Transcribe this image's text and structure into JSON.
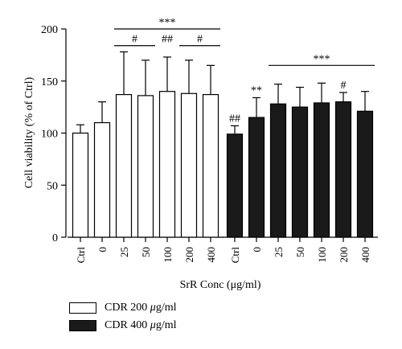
{
  "chart_data": {
    "type": "bar",
    "categories": [
      "Ctrl",
      "0",
      "25",
      "50",
      "100",
      "200",
      "400"
    ],
    "series": [
      {
        "name": "CDR 200 μg/ml",
        "fill": "#ffffff",
        "values": [
          100,
          110,
          137,
          136,
          140,
          138,
          137
        ],
        "errors": [
          8,
          20,
          41,
          34,
          33,
          32,
          28
        ],
        "annotations": [
          "",
          "",
          "",
          "",
          "",
          "",
          ""
        ]
      },
      {
        "name": "CDR 400 μg/ml",
        "fill": "#1a1a1a",
        "values": [
          99,
          115,
          128,
          125,
          129,
          130,
          121
        ],
        "errors": [
          8,
          19,
          19,
          19,
          19,
          9,
          19
        ],
        "annotations": [
          "##",
          "**",
          "",
          "",
          "",
          "#",
          ""
        ]
      }
    ],
    "ylabel": "Cell viability (% of Ctrl)",
    "xlabel": "SrR Conc (μg/ml)",
    "ylim": [
      0,
      200
    ],
    "yticks": [
      0,
      50,
      100,
      150,
      200
    ],
    "grid": false,
    "legend_position": "bottom-left",
    "significance": [
      {
        "series": 0,
        "from": 2,
        "to": 6,
        "label": "***",
        "y": 200
      },
      {
        "series": 0,
        "from": 2,
        "to": 3,
        "label": "#",
        "y": 184
      },
      {
        "series": 0,
        "from": 5,
        "to": 6,
        "label": "#",
        "y": 184
      },
      {
        "series": 0,
        "from": 4,
        "to": 4,
        "label": "##",
        "y": 184
      },
      {
        "series": 1,
        "from": 2,
        "to": 6,
        "label": "***",
        "y": 165
      }
    ]
  },
  "legend": {
    "items": [
      {
        "prefix": "CDR 200 ",
        "mu": "μ",
        "suffix": "g/ml"
      },
      {
        "prefix": "CDR 400 ",
        "mu": "μ",
        "suffix": "g/ml"
      }
    ]
  }
}
